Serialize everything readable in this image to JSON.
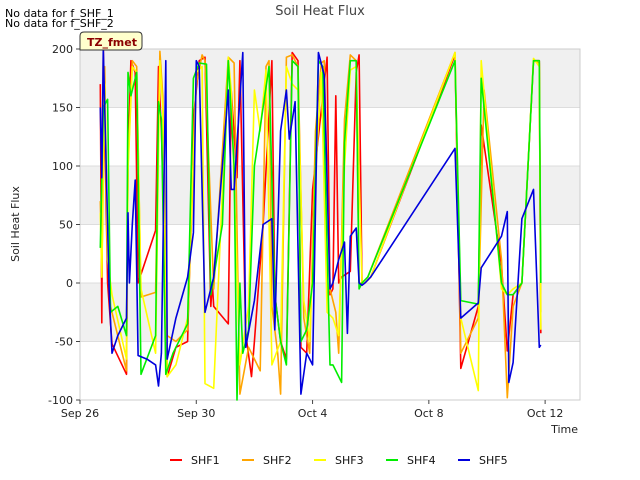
{
  "notes": {
    "no_data_1": "No data for f_SHF_1",
    "no_data_2": "No data for f_SHF_2"
  },
  "chart_data": {
    "type": "line",
    "title": "Soil Heat Flux",
    "xlabel": "Time",
    "ylabel": "Soil Heat Flux",
    "xlim": [
      0,
      17.2
    ],
    "ylim": [
      -100,
      200
    ],
    "xticks": [
      {
        "value": 0,
        "label": "Sep 26"
      },
      {
        "value": 4,
        "label": "Sep 30"
      },
      {
        "value": 8,
        "label": "Oct 4"
      },
      {
        "value": 12,
        "label": "Oct 8"
      },
      {
        "value": 16,
        "label": "Oct 12"
      }
    ],
    "yticks": [
      -100,
      -50,
      0,
      50,
      100,
      150,
      200
    ],
    "bands": [
      [
        -50,
        0
      ],
      [
        50,
        100
      ],
      [
        150,
        200
      ]
    ],
    "annotation_box": "TZ_fmet",
    "series": [
      {
        "name": "SHF1",
        "color": "#ff0000",
        "points": [
          [
            0.7,
            170
          ],
          [
            0.75,
            -34
          ],
          [
            0.8,
            200
          ],
          [
            0.95,
            0
          ],
          [
            1.1,
            -52
          ],
          [
            1.6,
            -78
          ],
          [
            1.65,
            105
          ],
          [
            1.75,
            190
          ],
          [
            1.9,
            180
          ],
          [
            2.0,
            0
          ],
          [
            2.6,
            45
          ],
          [
            2.7,
            185
          ],
          [
            2.8,
            130
          ],
          [
            2.95,
            0
          ],
          [
            3.0,
            -80
          ],
          [
            3.3,
            -55
          ],
          [
            3.7,
            -50
          ],
          [
            3.9,
            140
          ],
          [
            4.1,
            190
          ],
          [
            4.3,
            193
          ],
          [
            4.5,
            -20
          ],
          [
            4.55,
            0
          ],
          [
            4.6,
            -20
          ],
          [
            5.1,
            -35
          ],
          [
            5.2,
            165
          ],
          [
            5.4,
            90
          ],
          [
            5.5,
            190
          ],
          [
            5.7,
            -43
          ],
          [
            5.9,
            -80
          ],
          [
            6.0,
            -50
          ],
          [
            6.3,
            50
          ],
          [
            6.6,
            190
          ],
          [
            6.7,
            -10
          ],
          [
            6.9,
            -50
          ],
          [
            7.1,
            -65
          ],
          [
            7.3,
            197
          ],
          [
            7.5,
            190
          ],
          [
            7.6,
            -55
          ],
          [
            7.8,
            -60
          ],
          [
            8.0,
            80
          ],
          [
            8.5,
            193
          ],
          [
            8.6,
            -10
          ],
          [
            8.7,
            -5
          ],
          [
            8.8,
            160
          ],
          [
            8.9,
            0
          ],
          [
            9.0,
            5
          ],
          [
            9.3,
            10
          ],
          [
            9.5,
            180
          ],
          [
            9.6,
            195
          ],
          [
            9.7,
            0
          ],
          [
            9.8,
            0
          ],
          [
            10.0,
            5
          ],
          [
            12.9,
            195
          ],
          [
            13.1,
            -73
          ],
          [
            13.7,
            -20
          ],
          [
            13.8,
            135
          ],
          [
            14.5,
            15
          ],
          [
            14.7,
            -58
          ],
          [
            14.9,
            -10
          ],
          [
            15.2,
            0
          ],
          [
            15.6,
            190
          ],
          [
            15.8,
            190
          ],
          [
            15.85,
            -43
          ]
        ]
      },
      {
        "name": "SHF2",
        "color": "#ffa500",
        "points": [
          [
            0.7,
            70
          ],
          [
            0.75,
            10
          ],
          [
            0.85,
            185
          ],
          [
            0.95,
            30
          ],
          [
            1.05,
            -20
          ],
          [
            1.6,
            -75
          ],
          [
            1.65,
            100
          ],
          [
            1.8,
            190
          ],
          [
            1.95,
            185
          ],
          [
            2.1,
            -12
          ],
          [
            2.6,
            -8
          ],
          [
            2.75,
            198
          ],
          [
            2.85,
            160
          ],
          [
            3.0,
            -45
          ],
          [
            3.3,
            -50
          ],
          [
            3.7,
            -40
          ],
          [
            4.0,
            170
          ],
          [
            4.2,
            195
          ],
          [
            4.3,
            190
          ],
          [
            4.6,
            -5
          ],
          [
            5.1,
            193
          ],
          [
            5.3,
            188
          ],
          [
            5.5,
            -95
          ],
          [
            5.8,
            -55
          ],
          [
            6.2,
            -75
          ],
          [
            6.4,
            185
          ],
          [
            6.5,
            190
          ],
          [
            6.6,
            -20
          ],
          [
            6.8,
            -60
          ],
          [
            6.9,
            -95
          ],
          [
            7.1,
            193
          ],
          [
            7.3,
            195
          ],
          [
            7.5,
            185
          ],
          [
            7.7,
            -30
          ],
          [
            7.9,
            -60
          ],
          [
            8.1,
            130
          ],
          [
            8.3,
            188
          ],
          [
            8.4,
            190
          ],
          [
            8.6,
            -5
          ],
          [
            8.8,
            -25
          ],
          [
            8.9,
            -60
          ],
          [
            9.1,
            140
          ],
          [
            9.3,
            195
          ],
          [
            9.5,
            190
          ],
          [
            9.6,
            0
          ],
          [
            9.7,
            0
          ],
          [
            9.9,
            5
          ],
          [
            12.9,
            197
          ],
          [
            13.1,
            -60
          ],
          [
            13.7,
            -30
          ],
          [
            13.9,
            165
          ],
          [
            14.5,
            20
          ],
          [
            14.7,
            -98
          ],
          [
            14.9,
            -20
          ],
          [
            15.2,
            0
          ],
          [
            15.6,
            190
          ],
          [
            15.8,
            188
          ],
          [
            15.85,
            -25
          ]
        ]
      },
      {
        "name": "SHF3",
        "color": "#ffff00",
        "points": [
          [
            0.7,
            60
          ],
          [
            0.75,
            5
          ],
          [
            0.85,
            170
          ],
          [
            0.95,
            20
          ],
          [
            1.1,
            -10
          ],
          [
            1.6,
            -65
          ],
          [
            1.65,
            95
          ],
          [
            1.8,
            185
          ],
          [
            1.95,
            180
          ],
          [
            2.1,
            -5
          ],
          [
            2.6,
            -60
          ],
          [
            2.75,
            190
          ],
          [
            2.85,
            150
          ],
          [
            3.0,
            -80
          ],
          [
            3.3,
            -70
          ],
          [
            3.7,
            -30
          ],
          [
            4.0,
            180
          ],
          [
            4.2,
            185
          ],
          [
            4.3,
            -86
          ],
          [
            4.6,
            -90
          ],
          [
            5.1,
            193
          ],
          [
            5.2,
            165
          ],
          [
            5.5,
            -70
          ],
          [
            5.8,
            -20
          ],
          [
            6.0,
            165
          ],
          [
            6.2,
            130
          ],
          [
            6.4,
            182
          ],
          [
            6.6,
            -70
          ],
          [
            6.9,
            -50
          ],
          [
            7.1,
            185
          ],
          [
            7.3,
            170
          ],
          [
            7.5,
            165
          ],
          [
            7.7,
            -15
          ],
          [
            7.9,
            -50
          ],
          [
            8.1,
            90
          ],
          [
            8.3,
            180
          ],
          [
            8.5,
            -25
          ],
          [
            8.7,
            -30
          ],
          [
            8.9,
            -45
          ],
          [
            9.1,
            100
          ],
          [
            9.3,
            182
          ],
          [
            9.5,
            185
          ],
          [
            9.7,
            0
          ],
          [
            9.8,
            0
          ],
          [
            10.0,
            5
          ],
          [
            12.9,
            197
          ],
          [
            13.1,
            -30
          ],
          [
            13.7,
            -92
          ],
          [
            13.8,
            190
          ],
          [
            14.5,
            -5
          ],
          [
            14.7,
            -10
          ],
          [
            14.9,
            -5
          ],
          [
            15.2,
            0
          ],
          [
            15.6,
            192
          ],
          [
            15.8,
            185
          ],
          [
            15.85,
            -40
          ]
        ]
      },
      {
        "name": "SHF4",
        "color": "#00ee00",
        "points": [
          [
            0.7,
            30
          ],
          [
            0.8,
            150
          ],
          [
            0.95,
            157
          ],
          [
            1.05,
            -25
          ],
          [
            1.3,
            -20
          ],
          [
            1.6,
            -45
          ],
          [
            1.65,
            180
          ],
          [
            1.75,
            160
          ],
          [
            1.95,
            180
          ],
          [
            2.1,
            -78
          ],
          [
            2.6,
            -45
          ],
          [
            2.7,
            155
          ],
          [
            2.8,
            140
          ],
          [
            2.95,
            -78
          ],
          [
            3.2,
            -60
          ],
          [
            3.7,
            -35
          ],
          [
            3.9,
            175
          ],
          [
            4.1,
            188
          ],
          [
            4.35,
            187
          ],
          [
            4.5,
            -10
          ],
          [
            4.9,
            50
          ],
          [
            5.1,
            190
          ],
          [
            5.3,
            100
          ],
          [
            5.4,
            -100
          ],
          [
            5.5,
            0
          ],
          [
            5.6,
            -60
          ],
          [
            5.8,
            -40
          ],
          [
            6.0,
            100
          ],
          [
            6.3,
            150
          ],
          [
            6.5,
            185
          ],
          [
            6.7,
            -10
          ],
          [
            6.9,
            -50
          ],
          [
            7.1,
            -70
          ],
          [
            7.3,
            190
          ],
          [
            7.5,
            185
          ],
          [
            7.6,
            -50
          ],
          [
            7.8,
            -40
          ],
          [
            8.0,
            0
          ],
          [
            8.2,
            190
          ],
          [
            8.35,
            185
          ],
          [
            8.6,
            -70
          ],
          [
            8.7,
            -70
          ],
          [
            9.0,
            -85
          ],
          [
            9.1,
            120
          ],
          [
            9.3,
            190
          ],
          [
            9.5,
            190
          ],
          [
            9.6,
            -5
          ],
          [
            9.7,
            0
          ],
          [
            9.9,
            5
          ],
          [
            12.9,
            190
          ],
          [
            13.1,
            -15
          ],
          [
            13.7,
            -18
          ],
          [
            13.8,
            175
          ],
          [
            14.5,
            0
          ],
          [
            14.7,
            -10
          ],
          [
            14.9,
            -10
          ],
          [
            15.2,
            0
          ],
          [
            15.6,
            190
          ],
          [
            15.8,
            190
          ],
          [
            15.85,
            0
          ]
        ]
      },
      {
        "name": "SHF5",
        "color": "#0000dd",
        "points": [
          [
            0.7,
            150
          ],
          [
            0.75,
            90
          ],
          [
            0.8,
            200
          ],
          [
            0.95,
            50
          ],
          [
            1.0,
            -5
          ],
          [
            1.1,
            -60
          ],
          [
            1.3,
            -45
          ],
          [
            1.6,
            -30
          ],
          [
            1.65,
            60
          ],
          [
            1.7,
            0
          ],
          [
            1.8,
            50
          ],
          [
            1.9,
            88
          ],
          [
            2.0,
            -62
          ],
          [
            2.3,
            -65
          ],
          [
            2.6,
            -70
          ],
          [
            2.7,
            -88
          ],
          [
            2.8,
            -60
          ],
          [
            2.95,
            190
          ],
          [
            3.0,
            -65
          ],
          [
            3.3,
            -30
          ],
          [
            3.7,
            5
          ],
          [
            3.9,
            43
          ],
          [
            4.0,
            190
          ],
          [
            4.1,
            185
          ],
          [
            4.3,
            -25
          ],
          [
            4.6,
            5
          ],
          [
            5.1,
            165
          ],
          [
            5.2,
            80
          ],
          [
            5.3,
            80
          ],
          [
            5.6,
            197
          ],
          [
            5.7,
            -55
          ],
          [
            6.0,
            -15
          ],
          [
            6.3,
            50
          ],
          [
            6.6,
            55
          ],
          [
            6.7,
            -40
          ],
          [
            6.9,
            130
          ],
          [
            7.1,
            165
          ],
          [
            7.2,
            123
          ],
          [
            7.4,
            155
          ],
          [
            7.6,
            -95
          ],
          [
            7.8,
            -60
          ],
          [
            8.0,
            -70
          ],
          [
            8.2,
            197
          ],
          [
            8.4,
            178
          ],
          [
            8.6,
            -5
          ],
          [
            8.7,
            0
          ],
          [
            8.9,
            20
          ],
          [
            9.1,
            35
          ],
          [
            9.2,
            -43
          ],
          [
            9.3,
            40
          ],
          [
            9.5,
            47
          ],
          [
            9.6,
            0
          ],
          [
            9.7,
            -2
          ],
          [
            9.8,
            0
          ],
          [
            10.0,
            5
          ],
          [
            12.9,
            115
          ],
          [
            13.1,
            -30
          ],
          [
            13.7,
            -17
          ],
          [
            13.8,
            13
          ],
          [
            14.5,
            40
          ],
          [
            14.7,
            61
          ],
          [
            14.75,
            -85
          ],
          [
            14.9,
            -68
          ],
          [
            15.2,
            55
          ],
          [
            15.6,
            80
          ],
          [
            15.8,
            -55
          ],
          [
            15.85,
            -53
          ]
        ]
      }
    ]
  }
}
